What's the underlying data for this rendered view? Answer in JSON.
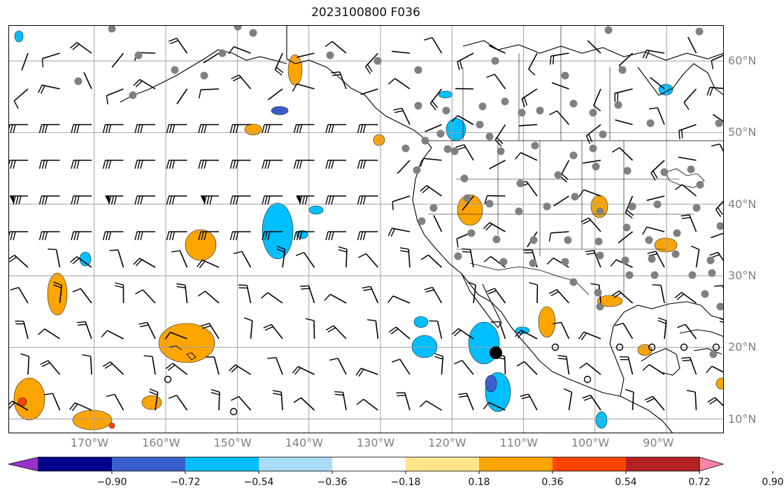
{
  "title": "2023100800 F036",
  "map": {
    "lon_range": [
      -182,
      -82
    ],
    "lat_range": [
      8,
      65
    ],
    "lon_ticks": [
      "170°W",
      "160°W",
      "150°W",
      "140°W",
      "130°W",
      "120°W",
      "110°W",
      "100°W",
      "90°W"
    ],
    "lat_ticks": [
      "10°N",
      "20°N",
      "30°N",
      "40°N",
      "50°N",
      "60°N"
    ],
    "gridlines": true,
    "fill_colors": {
      "neg_light": "#aadcf5",
      "neg": "#00bfff",
      "neg_mid": "#3a5fcd",
      "pos_light": "#fde68a",
      "pos": "#ffa500",
      "pos_mid": "#ff4500"
    },
    "station_color": "#808080"
  },
  "colorbar": {
    "orientation": "horizontal",
    "extend": "both",
    "colors": [
      "#9932cc",
      "#00008b",
      "#3a5fcd",
      "#00bfff",
      "#aadcf5",
      "#ffffff",
      "#fde68a",
      "#ffa500",
      "#ff4500",
      "#b22222",
      "#f984a8"
    ],
    "tick_labels": [
      "−0.90",
      "−0.72",
      "−0.54",
      "−0.36",
      "−0.18",
      "0.18",
      "0.36",
      "0.54",
      "0.72",
      "0.90"
    ]
  }
}
